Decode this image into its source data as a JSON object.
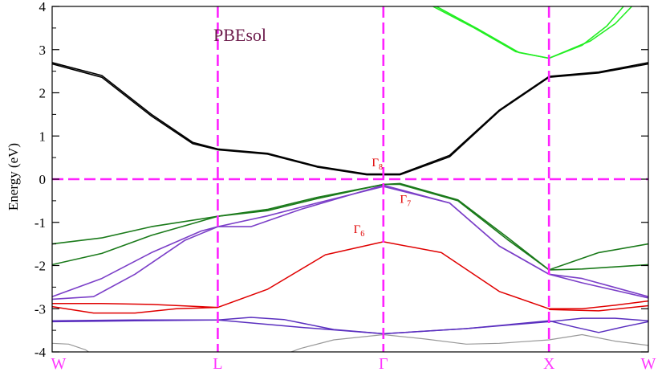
{
  "chart_data": {
    "type": "line",
    "title": "PBEsol",
    "xlabel": "",
    "ylabel": "Energy (eV)",
    "ylim": [
      -4,
      4
    ],
    "yticks": [
      -4,
      -3,
      -2,
      -1,
      0,
      1,
      2,
      3,
      4
    ],
    "ytick_labels": [
      "-4",
      "-3",
      "-2",
      "-1",
      "0",
      "1",
      "2",
      "3",
      "4"
    ],
    "kpath": {
      "labels": [
        "W",
        "L",
        "Γ",
        "X",
        "W"
      ],
      "positions": [
        0,
        1,
        2,
        3,
        3.6
      ]
    },
    "fermi_level": 0,
    "grid": false,
    "annotations": [
      {
        "base": "Γ",
        "sub": "8",
        "x": 1.93,
        "y": 0.3
      },
      {
        "base": "Γ",
        "sub": "7",
        "x": 2.1,
        "y": -0.55
      },
      {
        "base": "Γ",
        "sub": "6",
        "x": 1.82,
        "y": -1.25
      }
    ],
    "series": [
      {
        "color": "#999999",
        "width": 1.2,
        "segments": [
          [
            [
              0,
              -3.8
            ],
            [
              0.1,
              -3.82
            ],
            [
              0.2,
              -3.95
            ],
            [
              0.3,
              -4.2
            ]
          ],
          [
            [
              0.35,
              -4.2
            ],
            [
              0.5,
              -4.1
            ],
            [
              0.6,
              -4.05
            ]
          ],
          [
            [
              1.3,
              -4.2
            ],
            [
              1.5,
              -3.92
            ],
            [
              1.7,
              -3.72
            ],
            [
              2.0,
              -3.6
            ],
            [
              2.25,
              -3.7
            ],
            [
              2.5,
              -3.82
            ],
            [
              2.7,
              -3.8
            ],
            [
              3.0,
              -3.72
            ],
            [
              3.2,
              -3.6
            ],
            [
              3.4,
              -3.75
            ],
            [
              3.6,
              -3.85
            ]
          ]
        ]
      },
      {
        "color": "#5a2fbf",
        "width": 1.5,
        "segments": [
          [
            [
              0,
              -3.28
            ],
            [
              0.5,
              -3.26
            ],
            [
              1.0,
              -3.26
            ],
            [
              1.5,
              -3.43
            ],
            [
              2.0,
              -3.58
            ],
            [
              2.5,
              -3.46
            ],
            [
              3.0,
              -3.3
            ],
            [
              3.2,
              -3.22
            ],
            [
              3.4,
              -3.22
            ],
            [
              3.6,
              -3.28
            ]
          ],
          [
            [
              0,
              -3.3
            ],
            [
              0.5,
              -3.28
            ],
            [
              1.0,
              -3.26
            ],
            [
              1.2,
              -3.2
            ],
            [
              1.4,
              -3.25
            ],
            [
              1.7,
              -3.48
            ],
            [
              2.0,
              -3.58
            ],
            [
              2.5,
              -3.46
            ],
            [
              3.0,
              -3.28
            ],
            [
              3.15,
              -3.42
            ],
            [
              3.3,
              -3.55
            ],
            [
              3.45,
              -3.42
            ],
            [
              3.6,
              -3.3
            ]
          ]
        ]
      },
      {
        "color": "#e00000",
        "width": 1.5,
        "segments": [
          [
            [
              0,
              -2.88
            ],
            [
              0.3,
              -2.88
            ],
            [
              0.6,
              -2.9
            ],
            [
              1.0,
              -2.97
            ],
            [
              1.3,
              -2.55
            ],
            [
              1.65,
              -1.75
            ],
            [
              2.0,
              -1.45
            ],
            [
              2.35,
              -1.7
            ],
            [
              2.7,
              -2.6
            ],
            [
              3.0,
              -3.0
            ],
            [
              3.2,
              -3.0
            ],
            [
              3.4,
              -2.92
            ],
            [
              3.6,
              -2.82
            ]
          ],
          [
            [
              0,
              -2.95
            ],
            [
              0.25,
              -3.1
            ],
            [
              0.5,
              -3.1
            ],
            [
              0.75,
              -3.0
            ],
            [
              1.0,
              -2.97
            ]
          ],
          [
            [
              3.0,
              -3.02
            ],
            [
              3.3,
              -3.05
            ],
            [
              3.6,
              -2.93
            ]
          ]
        ]
      },
      {
        "color": "#7b3fc8",
        "width": 1.6,
        "segments": [
          [
            [
              0,
              -2.72
            ],
            [
              0.3,
              -2.3
            ],
            [
              0.6,
              -1.7
            ],
            [
              0.9,
              -1.2
            ],
            [
              1.0,
              -1.1
            ],
            [
              1.3,
              -0.85
            ],
            [
              1.6,
              -0.55
            ],
            [
              2.0,
              -0.17
            ],
            [
              2.4,
              -0.55
            ],
            [
              2.7,
              -1.55
            ],
            [
              3.0,
              -2.2
            ],
            [
              3.2,
              -2.4
            ],
            [
              3.6,
              -2.75
            ]
          ],
          [
            [
              0,
              -2.78
            ],
            [
              0.25,
              -2.72
            ],
            [
              0.5,
              -2.2
            ],
            [
              0.8,
              -1.42
            ],
            [
              1.0,
              -1.1
            ],
            [
              1.2,
              -1.1
            ],
            [
              1.5,
              -0.7
            ],
            [
              2.0,
              -0.14
            ],
            [
              2.4,
              -0.55
            ],
            [
              2.7,
              -1.55
            ],
            [
              3.0,
              -2.2
            ],
            [
              3.2,
              -2.3
            ],
            [
              3.6,
              -2.72
            ]
          ]
        ]
      },
      {
        "color": "#1a7a1a",
        "width": 1.6,
        "segments": [
          [
            [
              0,
              -1.5
            ],
            [
              0.3,
              -1.36
            ],
            [
              0.6,
              -1.1
            ],
            [
              1.0,
              -0.86
            ],
            [
              1.3,
              -0.73
            ],
            [
              1.6,
              -0.45
            ],
            [
              2.0,
              -0.12
            ],
            [
              2.1,
              -0.12
            ],
            [
              2.45,
              -0.5
            ],
            [
              2.75,
              -1.4
            ],
            [
              3.0,
              -2.1
            ],
            [
              3.3,
              -1.7
            ],
            [
              3.6,
              -1.5
            ]
          ],
          [
            [
              0,
              -1.98
            ],
            [
              0.3,
              -1.72
            ],
            [
              0.6,
              -1.3
            ],
            [
              1.0,
              -0.86
            ],
            [
              1.3,
              -0.7
            ],
            [
              1.6,
              -0.42
            ],
            [
              2.0,
              -0.12
            ],
            [
              2.1,
              -0.1
            ],
            [
              2.45,
              -0.48
            ],
            [
              2.75,
              -1.35
            ],
            [
              3.0,
              -2.1
            ],
            [
              3.2,
              -2.08
            ],
            [
              3.6,
              -1.98
            ]
          ]
        ]
      },
      {
        "color": "#000000",
        "width": 1.6,
        "segments": [
          [
            [
              0,
              2.7
            ],
            [
              0.3,
              2.4
            ],
            [
              0.6,
              1.5
            ],
            [
              0.85,
              0.85
            ],
            [
              1.0,
              0.7
            ],
            [
              1.3,
              0.6
            ],
            [
              1.6,
              0.3
            ],
            [
              1.9,
              0.12
            ],
            [
              2.0,
              0.12
            ],
            [
              2.1,
              0.12
            ],
            [
              2.4,
              0.55
            ],
            [
              2.7,
              1.6
            ],
            [
              3.0,
              2.38
            ],
            [
              3.3,
              2.48
            ],
            [
              3.6,
              2.7
            ]
          ],
          [
            [
              0,
              2.67
            ],
            [
              0.3,
              2.36
            ],
            [
              0.6,
              1.46
            ],
            [
              0.85,
              0.82
            ],
            [
              1.0,
              0.68
            ],
            [
              1.3,
              0.58
            ],
            [
              1.6,
              0.28
            ],
            [
              1.9,
              0.1
            ],
            [
              2.0,
              0.1
            ],
            [
              2.1,
              0.1
            ],
            [
              2.4,
              0.52
            ],
            [
              2.7,
              1.58
            ],
            [
              3.0,
              2.36
            ],
            [
              3.3,
              2.46
            ],
            [
              3.6,
              2.67
            ]
          ]
        ]
      },
      {
        "color": "#22ee22",
        "width": 1.6,
        "segments": [
          [
            [
              2.3,
              4.0
            ],
            [
              2.55,
              3.5
            ],
            [
              2.8,
              2.95
            ],
            [
              3.0,
              2.8
            ],
            [
              3.2,
              3.1
            ],
            [
              3.35,
              3.55
            ],
            [
              3.45,
              4.0
            ]
          ],
          [
            [
              2.32,
              4.0
            ],
            [
              2.57,
              3.48
            ],
            [
              2.82,
              2.93
            ],
            [
              3.0,
              2.8
            ],
            [
              3.25,
              3.2
            ],
            [
              3.4,
              3.6
            ],
            [
              3.5,
              4.0
            ]
          ]
        ]
      }
    ]
  }
}
